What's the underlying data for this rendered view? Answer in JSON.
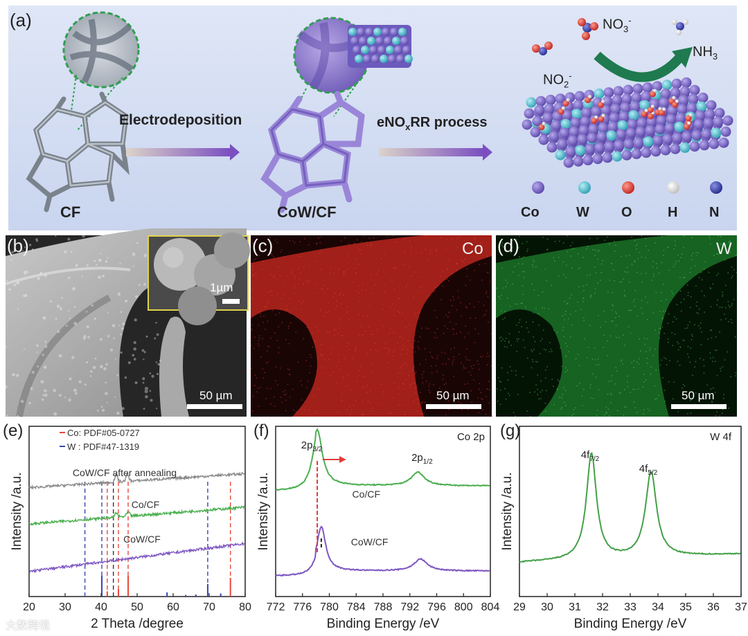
{
  "panel_a": {
    "label": "(a)",
    "cf_label": "CF",
    "cow_label": "CoW/CF",
    "step1": "Electrodeposition",
    "step2_main": "eNO",
    "step2_sub": "x",
    "step2_rest": "RR process",
    "no3_main": "NO",
    "no3_sub": "3",
    "no3_sup": "-",
    "no2_main": "NO",
    "no2_sub": "2",
    "no2_sup": "-",
    "nh3_main": "NH",
    "nh3_sub": "3",
    "legend": [
      {
        "symbol": "Co",
        "color": "#7b6bc4"
      },
      {
        "symbol": "W",
        "color": "#5cc5d4"
      },
      {
        "symbol": "O",
        "color": "#e23b3b"
      },
      {
        "symbol": "H",
        "color": "#f4f4f4"
      },
      {
        "symbol": "N",
        "color": "#3b43a8"
      }
    ]
  },
  "panel_b": {
    "label": "(b)",
    "scale": "50 µm",
    "inset_scale": "1µm"
  },
  "panel_c": {
    "label": "(c)",
    "element": "Co",
    "scale": "50 µm",
    "color": "#c0392b"
  },
  "panel_d": {
    "label": "(d)",
    "element": "W",
    "scale": "50 µm",
    "color": "#27ae60"
  },
  "watermark": "大数跨境",
  "chart_data": [
    {
      "id": "e",
      "label": "(e)",
      "type": "line",
      "xlabel": "2 Theta /degree",
      "ylabel": "Intensity /a.u.",
      "xlim": [
        20,
        80
      ],
      "xticks": [
        20,
        30,
        40,
        50,
        60,
        70,
        80
      ],
      "legend": [
        {
          "text": "Co: PDF#05-0727",
          "color": "#e8473c"
        },
        {
          "text": "W : PDF#47-1319",
          "color": "#3546b0"
        }
      ],
      "series": [
        {
          "name": "CoW/CF after annealing",
          "color": "#8a8a8a",
          "base": 0.78,
          "slope": 0.1,
          "peaks": [
            [
              44.2,
              0.05
            ],
            [
              47.3,
              0.05
            ]
          ]
        },
        {
          "name": "Co/CF",
          "color": "#4caf50",
          "base": 0.52,
          "slope": 0.12,
          "peaks": [
            [
              44.2,
              0.03
            ],
            [
              47.5,
              0.03
            ]
          ]
        },
        {
          "name": "CoW/CF",
          "color": "#7e57c2",
          "base": 0.18,
          "slope": 0.2,
          "peaks": []
        }
      ],
      "ref_lines": [
        {
          "x": 35.5,
          "color": "#3546b0"
        },
        {
          "x": 40.2,
          "color": "#3546b0"
        },
        {
          "x": 41.7,
          "color": "#e8473c"
        },
        {
          "x": 43.4,
          "color": "#333333"
        },
        {
          "x": 44.8,
          "color": "#e8473c"
        },
        {
          "x": 47.5,
          "color": "#e8473c"
        },
        {
          "x": 69.6,
          "color": "#3546b0"
        },
        {
          "x": 75.9,
          "color": "#e8473c"
        }
      ],
      "co_sticks": [
        [
          41.7,
          0.25
        ],
        [
          44.8,
          0.35
        ],
        [
          47.5,
          1.0
        ],
        [
          75.9,
          0.9
        ]
      ],
      "w_sticks": [
        [
          40.2,
          1.0
        ],
        [
          58.3,
          0.2
        ],
        [
          73.2,
          0.15
        ],
        [
          69.6,
          0.6
        ],
        [
          66.3,
          0.1
        ],
        [
          63.5,
          0.08
        ]
      ]
    },
    {
      "id": "f",
      "label": "(f)",
      "type": "line",
      "title": "Co 2p",
      "xlabel": "Binding Energy /eV",
      "ylabel": "Intensity /a.u.",
      "xlim": [
        772,
        804
      ],
      "xticks": [
        772,
        776,
        780,
        784,
        788,
        792,
        796,
        800,
        804
      ],
      "peak_labels": [
        {
          "main": "2p",
          "sub": "3/2",
          "x": 778.2
        },
        {
          "main": "2p",
          "sub": "1/2",
          "x": 793.2
        }
      ],
      "series": [
        {
          "name": "Co/CF",
          "color": "#4caf50",
          "base": 0.62,
          "peaks": [
            [
              778.2,
              0.33,
              0.9
            ],
            [
              793.2,
              0.08,
              1.2
            ]
          ]
        },
        {
          "name": "CoW/CF",
          "color": "#7e57c2",
          "base": 0.12,
          "peaks": [
            [
              778.8,
              0.26,
              0.8
            ],
            [
              793.6,
              0.07,
              1.2
            ]
          ]
        }
      ]
    },
    {
      "id": "g",
      "label": "(g)",
      "type": "line",
      "title": "W 4f",
      "xlabel": "Binding Energy /eV",
      "ylabel": "Intensity /a.u.",
      "xlim": [
        29,
        37
      ],
      "xticks": [
        29,
        30,
        31,
        32,
        33,
        34,
        35,
        36,
        37
      ],
      "peak_labels": [
        {
          "main": "4f",
          "sub": "7/2",
          "x": 31.6
        },
        {
          "main": "4f",
          "sub": "5/2",
          "x": 33.8
        }
      ],
      "series": [
        {
          "name": "W 4f",
          "color": "#43a047",
          "base": 0.2,
          "peaks": [
            [
              31.6,
              0.62,
              0.22
            ],
            [
              33.75,
              0.5,
              0.24
            ]
          ]
        }
      ]
    }
  ]
}
